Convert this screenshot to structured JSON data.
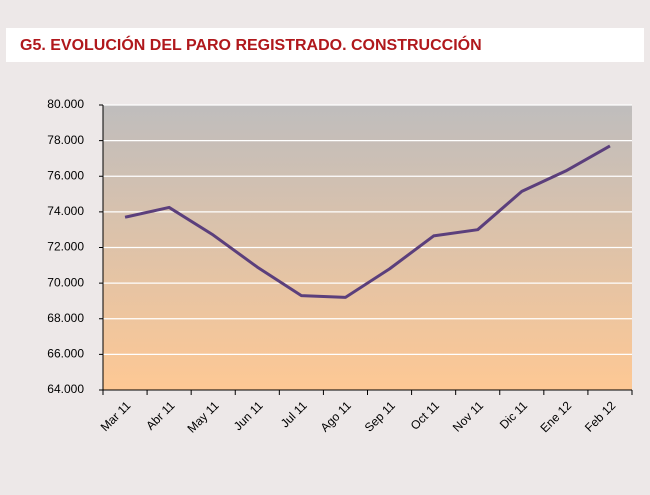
{
  "chart_data": {
    "type": "line",
    "title": "G5. EVOLUCIÓN DEL PARO REGISTRADO. CONSTRUCCIÓN",
    "categories": [
      "Mar 11",
      "Abr 11",
      "May 11",
      "Jun 11",
      "Jul 11",
      "Ago 11",
      "Sep 11",
      "Oct 11",
      "Nov 11",
      "Dic 11",
      "Ene 12",
      "Feb 12"
    ],
    "series": [
      {
        "color": "#5b3f7c",
        "values": [
          73700,
          74250,
          72700,
          70900,
          69300,
          69200,
          70800,
          72650,
          73000,
          75150,
          76300,
          77700
        ]
      }
    ],
    "ylim": [
      64000,
      80000
    ],
    "yticks": [
      {
        "value": 64000,
        "label": "64.000"
      },
      {
        "value": 66000,
        "label": "66.000"
      },
      {
        "value": 68000,
        "label": "68.000"
      },
      {
        "value": 70000,
        "label": "70.000"
      },
      {
        "value": 72000,
        "label": "72.000"
      },
      {
        "value": 74000,
        "label": "74.000"
      },
      {
        "value": 76000,
        "label": "76.000"
      },
      {
        "value": 78000,
        "label": "78.000"
      },
      {
        "value": 80000,
        "label": "80.000"
      }
    ],
    "grid": true
  }
}
